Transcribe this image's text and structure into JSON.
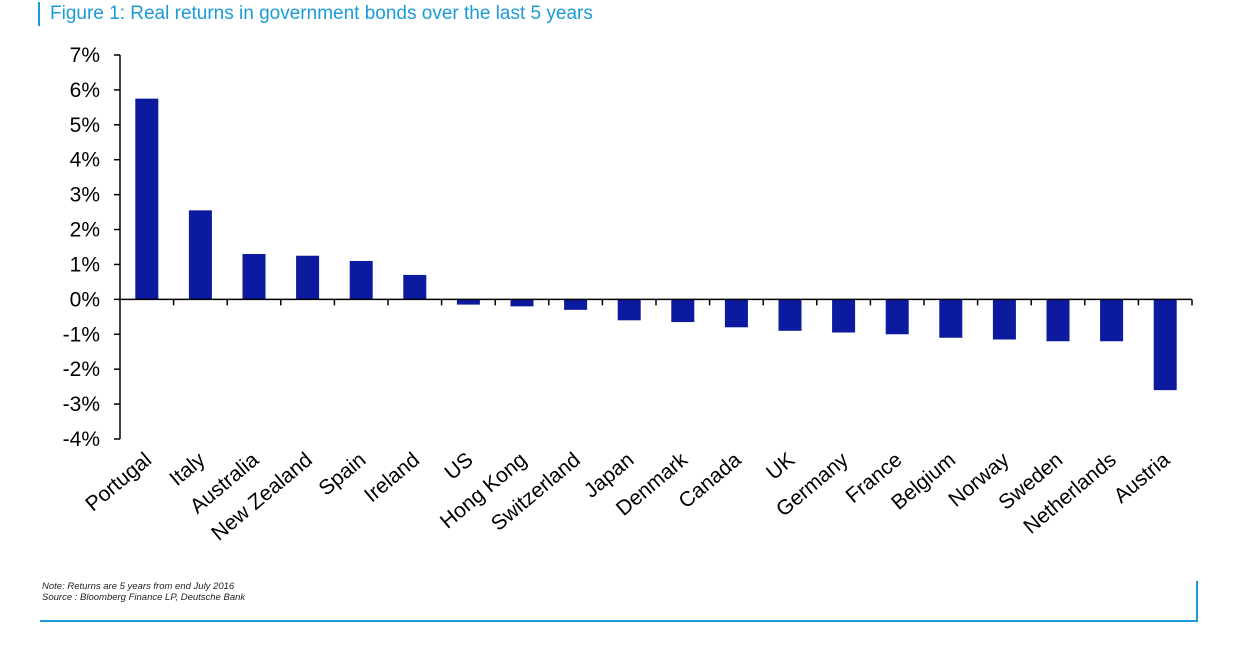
{
  "title": "Figure 1: Real returns in government bonds over the last 5 years",
  "notes": {
    "note": "Note: Returns are 5 years from end July 2016",
    "source": "Source : Bloomberg Finance LP, Deutsche Bank"
  },
  "colors": {
    "bar": "#0b1a9e",
    "accent": "#1a9bd7",
    "axis": "#000000"
  },
  "chart_data": {
    "type": "bar",
    "title": "Figure 1: Real returns in government bonds over the last 5 years",
    "xlabel": "",
    "ylabel": "",
    "ylim": [
      -4,
      7
    ],
    "yticks": [
      "7%",
      "6%",
      "5%",
      "4%",
      "3%",
      "2%",
      "1%",
      "0%",
      "-1%",
      "-2%",
      "-3%",
      "-4%"
    ],
    "grid": false,
    "legend": "none",
    "categories": [
      "Portugal",
      "Italy",
      "Australia",
      "New Zealand",
      "Spain",
      "Ireland",
      "US",
      "Hong Kong",
      "Switzerland",
      "Japan",
      "Denmark",
      "Canada",
      "UK",
      "Germany",
      "France",
      "Belgium",
      "Norway",
      "Sweden",
      "Netherlands",
      "Austria"
    ],
    "values": [
      5.75,
      2.55,
      1.3,
      1.25,
      1.1,
      0.7,
      -0.15,
      -0.2,
      -0.3,
      -0.6,
      -0.65,
      -0.8,
      -0.9,
      -0.95,
      -1.0,
      -1.1,
      -1.15,
      -1.2,
      -1.2,
      -2.6
    ]
  }
}
